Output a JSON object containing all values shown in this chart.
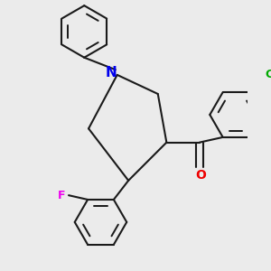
{
  "bg_color": "#ebebeb",
  "bond_color": "#1a1a1a",
  "bond_lw": 1.5,
  "atom_colors": {
    "N": "#0000ee",
    "O": "#ee0000",
    "F": "#ee00ee",
    "Cl": "#00aa00"
  },
  "font_size": 9,
  "fig_size": [
    3.0,
    3.0
  ],
  "dpi": 100
}
